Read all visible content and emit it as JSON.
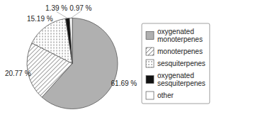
{
  "chart_data": {
    "type": "pie",
    "categories": [
      "oxygenated\nmonoterpenes",
      "monoterpenes",
      "sesquiterpenes",
      "oxygenated\nsesquiterpenes",
      "other"
    ],
    "values": [
      61.69,
      20.77,
      15.19,
      1.39,
      0.97
    ],
    "value_labels": [
      "61.69 %",
      "20.77 %",
      "15.19 %",
      "1.39 %",
      "0.97 %"
    ],
    "colors": [
      "#b0b0b0",
      "white",
      "white",
      "#111111",
      "white"
    ],
    "data_labels": true,
    "legend": "right"
  }
}
